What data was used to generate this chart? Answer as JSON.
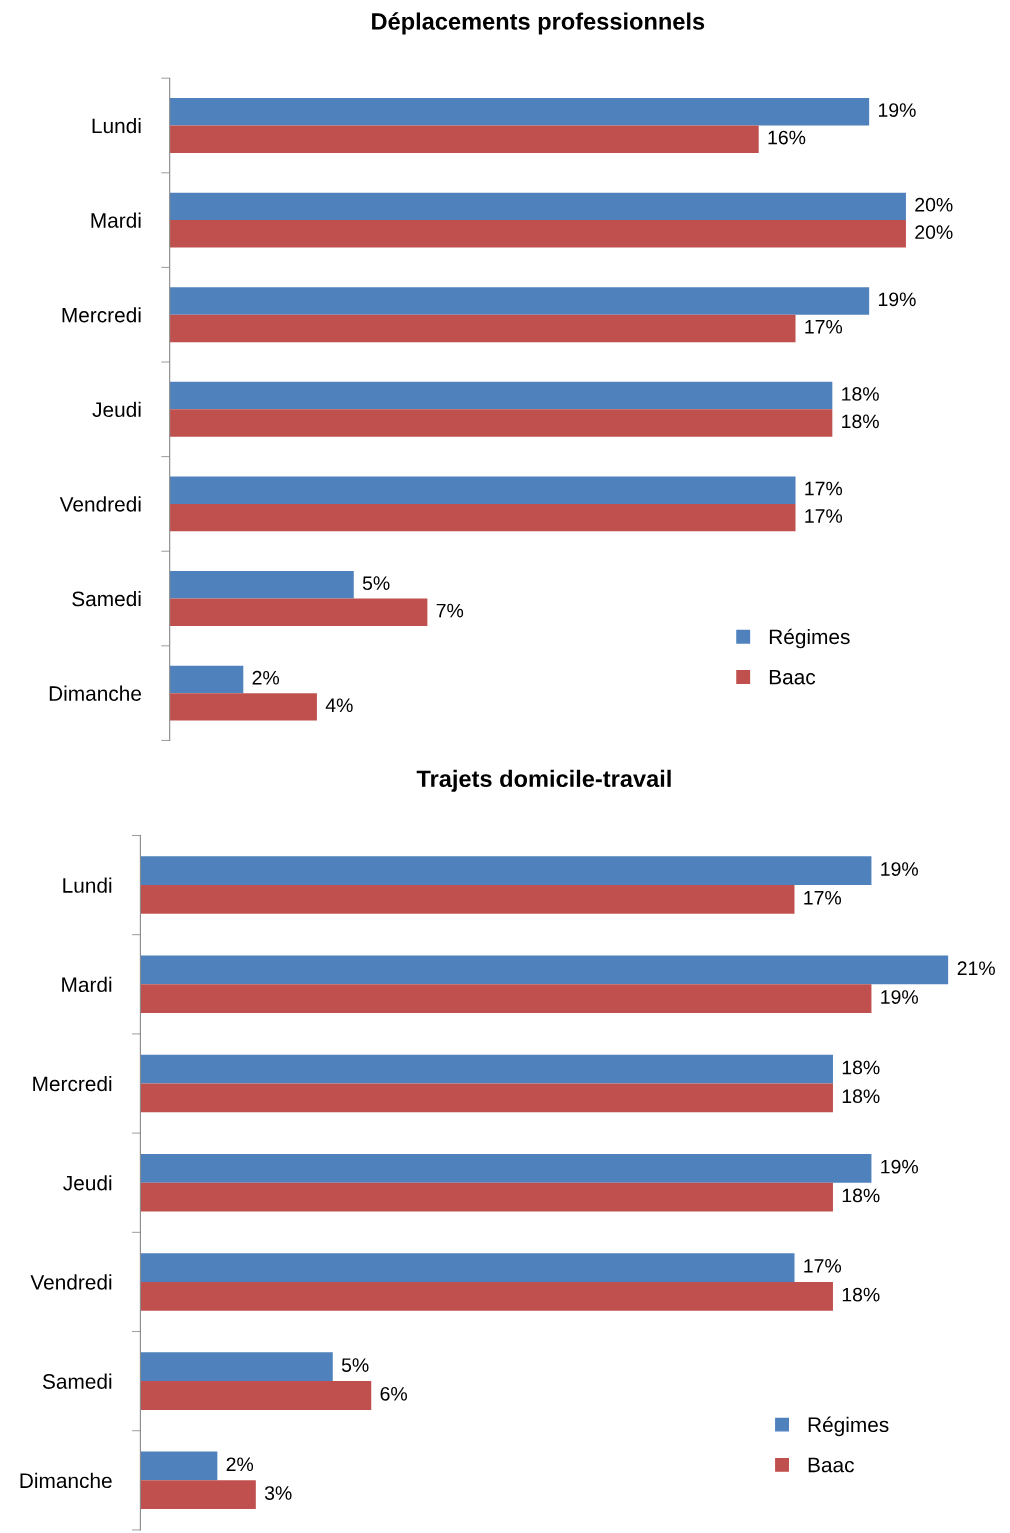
{
  "chart_data": [
    {
      "type": "bar",
      "orientation": "horizontal",
      "title": "Déplacements professionnels",
      "categories": [
        "Lundi",
        "Mardi",
        "Mercredi",
        "Jeudi",
        "Vendredi",
        "Samedi",
        "Dimanche"
      ],
      "series": [
        {
          "name": "Régimes",
          "color": "#4f81bd",
          "values": [
            19,
            20,
            19,
            18,
            17,
            5,
            2
          ],
          "value_labels": [
            "19%",
            "20%",
            "19%",
            "18%",
            "17%",
            "5%",
            "2%"
          ]
        },
        {
          "name": "Baac",
          "color": "#c0504d",
          "values": [
            16,
            20,
            17,
            18,
            17,
            7,
            4
          ],
          "value_labels": [
            "16%",
            "20%",
            "17%",
            "18%",
            "17%",
            "7%",
            "4%"
          ]
        }
      ],
      "tick_labels": "y",
      "legend": "bottom right",
      "grid": false
    },
    {
      "type": "bar",
      "orientation": "horizontal",
      "title": "Trajets domicile-travail",
      "categories": [
        "Lundi",
        "Mardi",
        "Mercredi",
        "Jeudi",
        "Vendredi",
        "Samedi",
        "Dimanche"
      ],
      "series": [
        {
          "name": "Régimes",
          "color": "#4f81bd",
          "values": [
            19,
            21,
            18,
            19,
            17,
            5,
            2
          ],
          "value_labels": [
            "19%",
            "21%",
            "18%",
            "19%",
            "17%",
            "5%",
            "2%"
          ]
        },
        {
          "name": "Baac",
          "color": "#c0504d",
          "values": [
            17,
            19,
            18,
            18,
            18,
            6,
            3
          ],
          "value_labels": [
            "17%",
            "19%",
            "18%",
            "18%",
            "18%",
            "6%",
            "3%"
          ]
        }
      ],
      "tick_labels": "y",
      "legend": "bottom right",
      "grid": false
    }
  ]
}
